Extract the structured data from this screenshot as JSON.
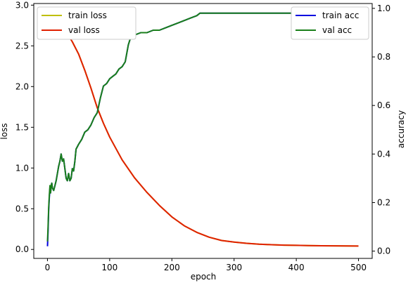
{
  "chart_data": {
    "type": "line",
    "xlabel": "epoch",
    "ylabel_left": "loss",
    "ylabel_right": "accuracy",
    "xlim": [
      -22,
      522
    ],
    "ylim_left": [
      -0.11,
      3.02
    ],
    "ylim_right": [
      -0.03,
      1.02
    ],
    "x_ticks": [
      0,
      100,
      200,
      300,
      400,
      500
    ],
    "y_ticks_left": [
      0.0,
      0.5,
      1.0,
      1.5,
      2.0,
      2.5,
      3.0
    ],
    "y_ticks_right": [
      0.0,
      0.2,
      0.4,
      0.6,
      0.8,
      1.0
    ],
    "tick_labels": {
      "x": [
        "0",
        "100",
        "200",
        "300",
        "400",
        "500"
      ],
      "y_left": [
        "0.0",
        "0.5",
        "1.0",
        "1.5",
        "2.0",
        "2.5",
        "3.0"
      ],
      "y_right": [
        "0.0",
        "0.2",
        "0.4",
        "0.6",
        "0.8",
        "1.0"
      ]
    },
    "legend_left": {
      "placement": "upper-left",
      "entries": [
        "train loss",
        "val loss"
      ]
    },
    "legend_right": {
      "placement": "upper-right",
      "entries": [
        "train acc",
        "val acc"
      ]
    },
    "series": [
      {
        "name": "train loss",
        "axis": "left",
        "color": "#bfbf00",
        "x": [
          0,
          10,
          20,
          30,
          40,
          50,
          60,
          70,
          80,
          90,
          100,
          120,
          140,
          160,
          180,
          200,
          220,
          240,
          260,
          280,
          300,
          320,
          340,
          360,
          380,
          400,
          420,
          440,
          460,
          480,
          500
        ],
        "y": [
          2.9,
          2.85,
          2.77,
          2.67,
          2.55,
          2.4,
          2.2,
          1.98,
          1.74,
          1.55,
          1.38,
          1.1,
          0.88,
          0.7,
          0.54,
          0.4,
          0.29,
          0.21,
          0.15,
          0.11,
          0.09,
          0.075,
          0.065,
          0.058,
          0.053,
          0.05,
          0.047,
          0.045,
          0.044,
          0.043,
          0.042
        ]
      },
      {
        "name": "val loss",
        "axis": "left",
        "color": "#e02000",
        "x": [
          0,
          10,
          20,
          30,
          40,
          50,
          60,
          70,
          80,
          90,
          100,
          120,
          140,
          160,
          180,
          200,
          220,
          240,
          260,
          280,
          300,
          320,
          340,
          360,
          380,
          400,
          420,
          440,
          460,
          480,
          500
        ],
        "y": [
          2.9,
          2.85,
          2.77,
          2.67,
          2.55,
          2.4,
          2.2,
          1.98,
          1.74,
          1.55,
          1.38,
          1.1,
          0.88,
          0.7,
          0.54,
          0.4,
          0.29,
          0.21,
          0.15,
          0.11,
          0.09,
          0.075,
          0.065,
          0.058,
          0.053,
          0.05,
          0.047,
          0.045,
          0.044,
          0.043,
          0.042
        ]
      },
      {
        "name": "train acc",
        "axis": "right",
        "color": "#0000e0",
        "x": [
          0,
          1,
          2,
          3,
          4,
          5,
          6,
          7,
          8,
          10,
          12,
          14,
          16,
          18,
          20,
          22,
          24,
          26,
          28,
          30,
          32,
          34,
          36,
          38,
          40,
          42,
          44,
          46,
          48,
          50,
          55,
          60,
          65,
          70,
          75,
          80,
          85,
          90,
          95,
          100,
          105,
          110,
          115,
          120,
          125,
          130,
          135,
          140,
          150,
          160,
          170,
          180,
          190,
          200,
          210,
          220,
          230,
          240,
          245,
          250,
          300,
          350,
          400,
          450,
          500
        ],
        "y": [
          0.02,
          0.08,
          0.17,
          0.22,
          0.26,
          0.24,
          0.27,
          0.28,
          0.26,
          0.25,
          0.27,
          0.29,
          0.32,
          0.35,
          0.37,
          0.4,
          0.37,
          0.38,
          0.34,
          0.3,
          0.29,
          0.32,
          0.29,
          0.3,
          0.34,
          0.33,
          0.37,
          0.42,
          0.43,
          0.44,
          0.46,
          0.49,
          0.5,
          0.52,
          0.55,
          0.57,
          0.63,
          0.68,
          0.69,
          0.71,
          0.72,
          0.73,
          0.75,
          0.76,
          0.78,
          0.85,
          0.89,
          0.89,
          0.9,
          0.9,
          0.91,
          0.91,
          0.92,
          0.93,
          0.94,
          0.95,
          0.96,
          0.97,
          0.98,
          0.98,
          0.98,
          0.98,
          0.98,
          0.98,
          0.98
        ]
      },
      {
        "name": "val acc",
        "axis": "right",
        "color": "#1a7f1a",
        "x": [
          0,
          1,
          2,
          3,
          4,
          5,
          6,
          7,
          8,
          10,
          12,
          14,
          16,
          18,
          20,
          22,
          24,
          26,
          28,
          30,
          32,
          34,
          36,
          38,
          40,
          42,
          44,
          46,
          48,
          50,
          55,
          60,
          65,
          70,
          75,
          80,
          85,
          90,
          95,
          100,
          105,
          110,
          115,
          120,
          125,
          130,
          135,
          140,
          150,
          160,
          170,
          180,
          190,
          200,
          210,
          220,
          230,
          240,
          245,
          250,
          300,
          350,
          400,
          450,
          500
        ],
        "y": [
          0.04,
          0.1,
          0.18,
          0.23,
          0.27,
          0.24,
          0.27,
          0.28,
          0.26,
          0.25,
          0.27,
          0.29,
          0.32,
          0.35,
          0.37,
          0.4,
          0.37,
          0.38,
          0.34,
          0.3,
          0.29,
          0.32,
          0.29,
          0.3,
          0.34,
          0.33,
          0.37,
          0.42,
          0.43,
          0.44,
          0.46,
          0.49,
          0.5,
          0.52,
          0.55,
          0.57,
          0.63,
          0.68,
          0.69,
          0.71,
          0.72,
          0.73,
          0.75,
          0.76,
          0.78,
          0.85,
          0.89,
          0.89,
          0.9,
          0.9,
          0.91,
          0.91,
          0.92,
          0.93,
          0.94,
          0.95,
          0.96,
          0.97,
          0.98,
          0.98,
          0.98,
          0.98,
          0.98,
          0.98,
          0.98
        ]
      }
    ],
    "grid": false
  }
}
